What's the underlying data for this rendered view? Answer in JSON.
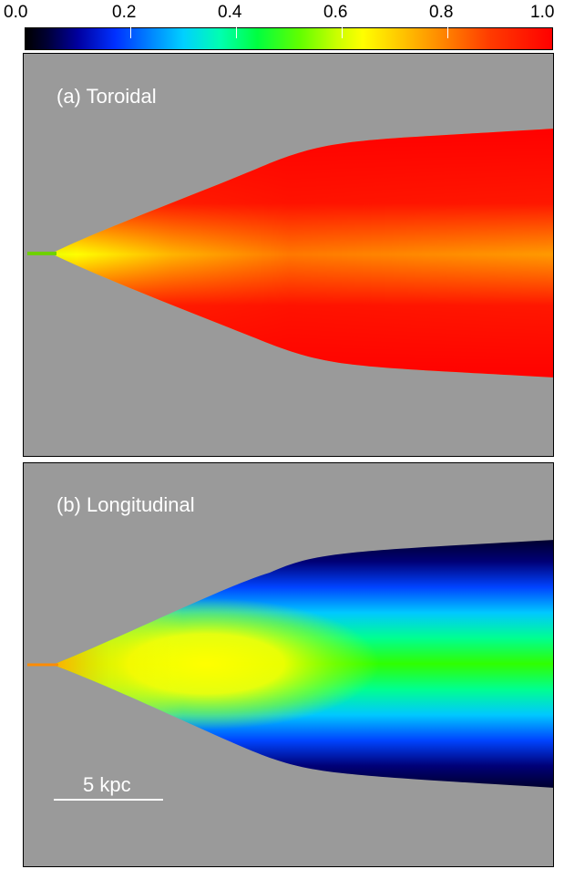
{
  "colorbar": {
    "ticks": [
      "0.0",
      "0.2",
      "0.4",
      "0.6",
      "0.8",
      "1.0"
    ]
  },
  "panels": [
    {
      "label": "(a) Toroidal"
    },
    {
      "label": "(b) Longitudinal"
    }
  ],
  "scalebar": {
    "label": "5 kpc"
  }
}
